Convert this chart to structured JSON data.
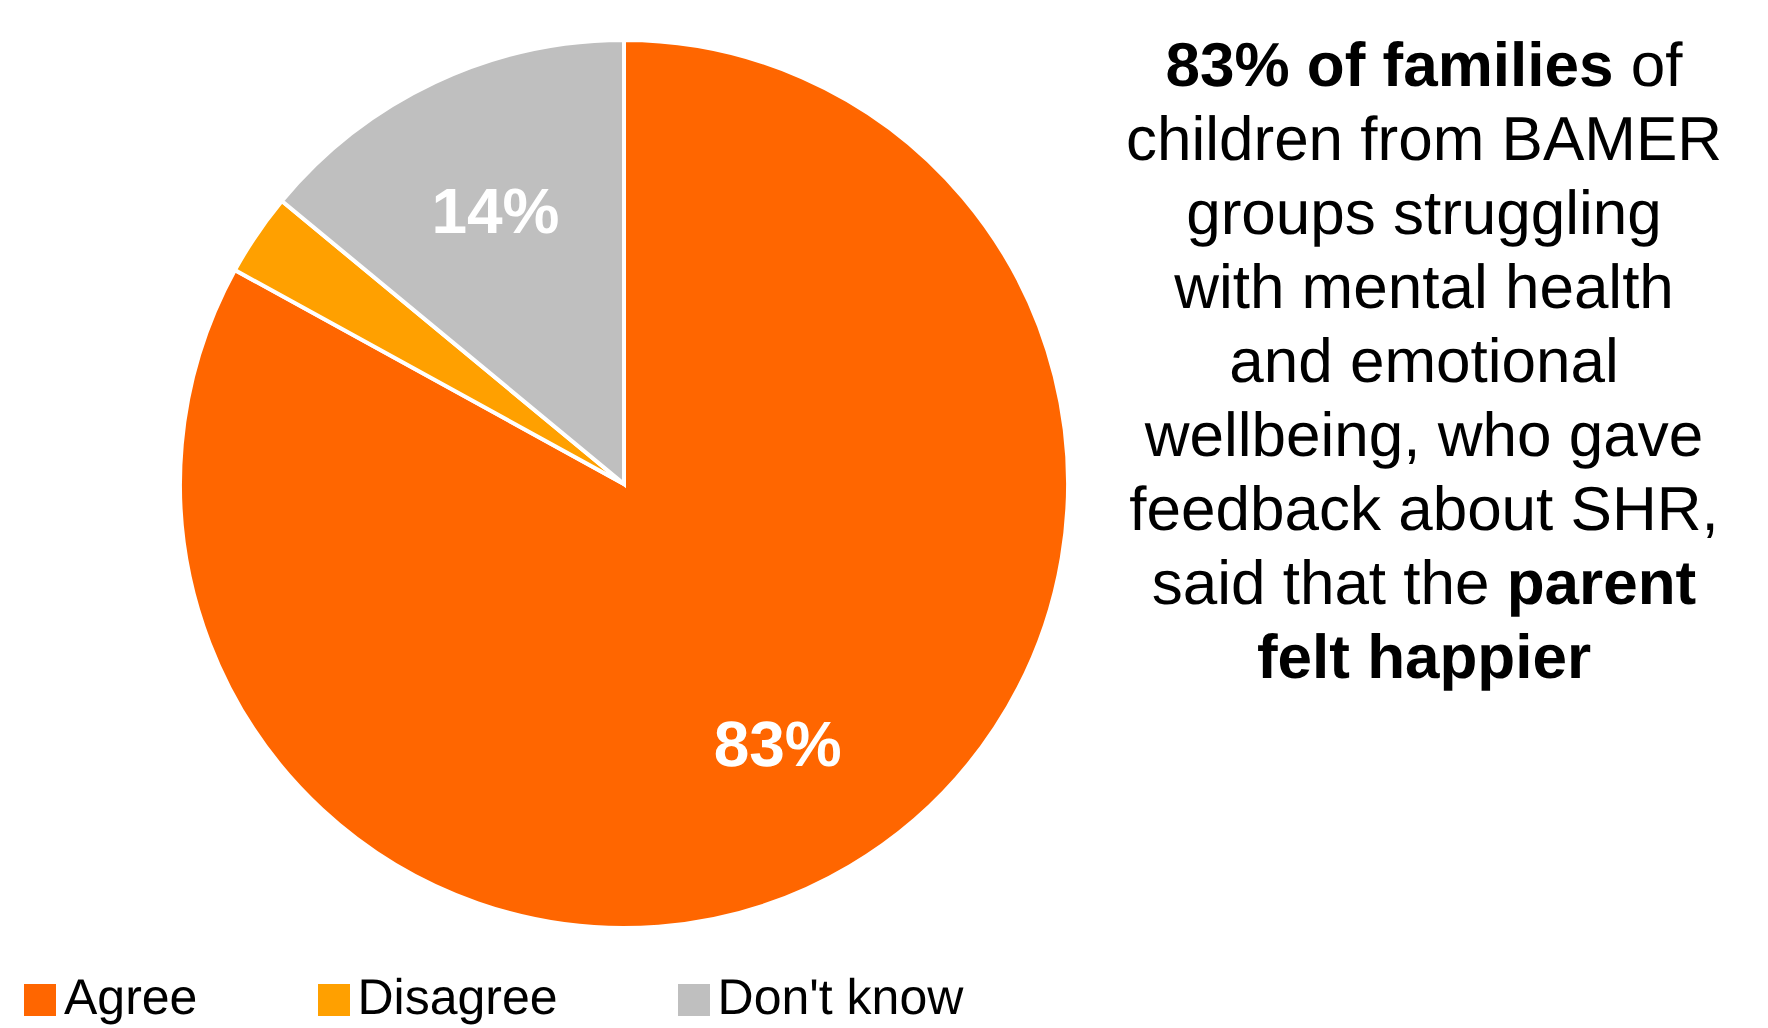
{
  "chart_data": {
    "type": "pie",
    "categories": [
      "Agree",
      "Disagree",
      "Don't know"
    ],
    "values": [
      83,
      3,
      14
    ],
    "colors": [
      "#ff6600",
      "#ffa000",
      "#bfbfbf"
    ],
    "value_labels": [
      "83%",
      null,
      "14%"
    ],
    "legend": "bottom left",
    "annotations": [
      "83% of families",
      " of children from BAMER groups struggling with mental health and emotional wellbeing, who gave feedback about SHR, said that the ",
      "parent felt happier"
    ]
  }
}
